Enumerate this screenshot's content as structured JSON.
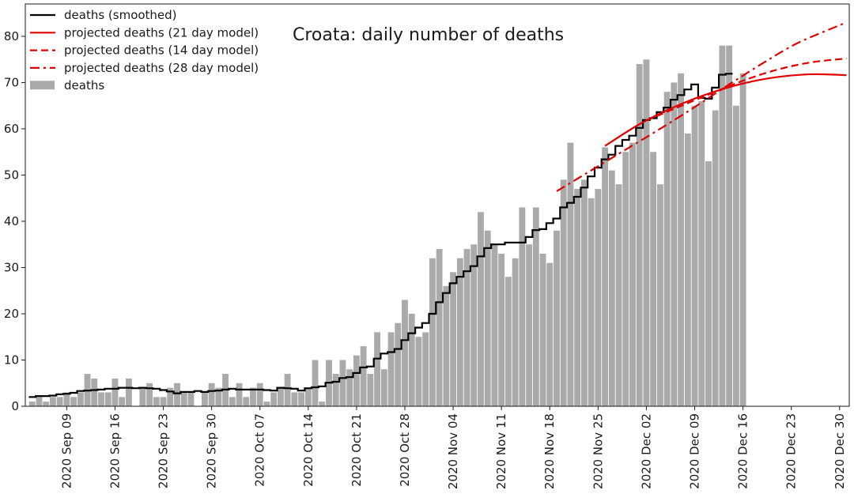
{
  "chart_data": {
    "type": "bar",
    "title": "Croata: daily number of deaths",
    "xlabel": "",
    "ylabel": "",
    "ylim": [
      0,
      87
    ],
    "xlim": [
      "2020-09-03",
      "2020-12-31"
    ],
    "grid": false,
    "legend_position": "top-left",
    "y_ticks": [
      0,
      10,
      20,
      30,
      40,
      50,
      60,
      70,
      80
    ],
    "x_ticks": [
      {
        "date": "2020-09-09",
        "label": "2020 Sep 09"
      },
      {
        "date": "2020-09-16",
        "label": "2020 Sep 16"
      },
      {
        "date": "2020-09-23",
        "label": "2020 Sep 23"
      },
      {
        "date": "2020-09-30",
        "label": "2020 Sep 30"
      },
      {
        "date": "2020-10-07",
        "label": "2020 Oct 07"
      },
      {
        "date": "2020-10-14",
        "label": "2020 Oct 14"
      },
      {
        "date": "2020-10-21",
        "label": "2020 Oct 21"
      },
      {
        "date": "2020-10-28",
        "label": "2020 Oct 28"
      },
      {
        "date": "2020-11-04",
        "label": "2020 Nov 04"
      },
      {
        "date": "2020-11-11",
        "label": "2020 Nov 11"
      },
      {
        "date": "2020-11-18",
        "label": "2020 Nov 18"
      },
      {
        "date": "2020-11-25",
        "label": "2020 Nov 25"
      },
      {
        "date": "2020-12-02",
        "label": "2020 Dec 02"
      },
      {
        "date": "2020-12-09",
        "label": "2020 Dec 09"
      },
      {
        "date": "2020-12-16",
        "label": "2020 Dec 16"
      },
      {
        "date": "2020-12-23",
        "label": "2020 Dec 23"
      },
      {
        "date": "2020-12-30",
        "label": "2020 Dec 30"
      }
    ],
    "legend": [
      {
        "label": "deaths (smoothed)",
        "color": "#000000",
        "style": "solid"
      },
      {
        "label": "projected deaths (21 day model)",
        "color": "#e00000",
        "style": "solid"
      },
      {
        "label": "projected deaths (14 day model)",
        "color": "#e00000",
        "style": "dashed"
      },
      {
        "label": "projected deaths (28 day model)",
        "color": "#e00000",
        "style": "dashdot"
      },
      {
        "label": "deaths",
        "color": "#aaaaaa",
        "style": "bar"
      }
    ],
    "bars": {
      "name": "deaths",
      "start_date": "2020-09-04",
      "color": "#aaaaaa",
      "values": [
        1,
        2,
        1,
        2,
        2,
        3,
        2,
        3,
        7,
        6,
        3,
        3,
        6,
        2,
        6,
        0,
        4,
        5,
        2,
        2,
        4,
        5,
        3,
        3,
        0,
        3,
        5,
        4,
        7,
        2,
        5,
        2,
        4,
        5,
        1,
        3,
        4,
        7,
        3,
        3,
        4,
        10,
        1,
        10,
        7,
        10,
        8,
        11,
        13,
        7,
        16,
        8,
        16,
        18,
        23,
        20,
        15,
        16,
        32,
        34,
        26,
        29,
        32,
        34,
        35,
        42,
        38,
        35,
        33,
        28,
        32,
        43,
        35,
        43,
        33,
        31,
        38,
        49,
        57,
        47,
        49,
        45,
        47,
        56,
        51,
        48,
        55,
        57,
        74,
        75,
        55,
        48,
        68,
        70,
        72,
        59,
        65,
        66,
        53,
        64,
        78,
        78,
        65,
        72
      ]
    },
    "smoothed": {
      "name": "deaths (smoothed)",
      "color": "#000000",
      "start_date": "2020-09-04",
      "values": [
        2.0,
        2.2,
        2.2,
        2.3,
        2.6,
        2.7,
        2.9,
        3.3,
        3.4,
        3.5,
        3.6,
        3.8,
        3.8,
        4.0,
        4.0,
        3.9,
        4.0,
        3.9,
        3.8,
        3.5,
        3.2,
        2.8,
        3.1,
        3.1,
        3.3,
        3.1,
        3.3,
        3.4,
        3.6,
        3.8,
        3.6,
        3.6,
        3.6,
        3.6,
        3.5,
        3.4,
        4.0,
        3.9,
        3.8,
        3.4,
        3.9,
        4.1,
        4.3,
        5.1,
        5.3,
        6.1,
        6.3,
        7.2,
        8.4,
        8.6,
        10.3,
        11.4,
        11.7,
        12.4,
        14.3,
        15.8,
        17.0,
        18.0,
        20.0,
        22.5,
        24.5,
        26.6,
        28.0,
        29.2,
        30.3,
        32.4,
        34.2,
        35.0,
        35.0,
        35.4,
        35.4,
        35.4,
        36.6,
        38.1,
        38.3,
        39.6,
        40.6,
        43.0,
        44.0,
        45.3,
        47.3,
        49.7,
        51.6,
        53.4,
        54.4,
        56.3,
        57.6,
        58.5,
        60.2,
        61.9,
        62.3,
        63.6,
        64.6,
        66.3,
        67.3,
        68.5,
        69.6,
        66.7,
        66.5,
        68.9,
        71.7,
        71.9
      ]
    },
    "projections": [
      {
        "name": "projected deaths (21 day model)",
        "style": "solid",
        "color": "#e00000",
        "points": [
          [
            "2020-11-26",
            56.3
          ],
          [
            "2020-12-01",
            61.0
          ],
          [
            "2020-12-06",
            64.7
          ],
          [
            "2020-12-11",
            67.6
          ],
          [
            "2020-12-16",
            69.8
          ],
          [
            "2020-12-21",
            71.2
          ],
          [
            "2020-12-26",
            71.8
          ],
          [
            "2020-12-31",
            71.6
          ]
        ]
      },
      {
        "name": "projected deaths (14 day model)",
        "style": "dashed",
        "color": "#e00000",
        "points": [
          [
            "2020-12-02",
            61.8
          ],
          [
            "2020-12-06",
            64.3
          ],
          [
            "2020-12-11",
            67.4
          ],
          [
            "2020-12-16",
            70.4
          ],
          [
            "2020-12-21",
            72.8
          ],
          [
            "2020-12-26",
            74.4
          ],
          [
            "2020-12-31",
            75.2
          ]
        ]
      },
      {
        "name": "projected deaths (28 day model)",
        "style": "dashdot",
        "color": "#e00000",
        "points": [
          [
            "2020-11-19",
            46.5
          ],
          [
            "2020-11-24",
            51.0
          ],
          [
            "2020-11-29",
            55.5
          ],
          [
            "2020-12-04",
            60.0
          ],
          [
            "2020-12-09",
            64.7
          ],
          [
            "2020-12-14",
            69.6
          ],
          [
            "2020-12-19",
            74.3
          ],
          [
            "2020-12-24",
            78.6
          ],
          [
            "2020-12-31",
            83.0
          ]
        ]
      }
    ]
  }
}
